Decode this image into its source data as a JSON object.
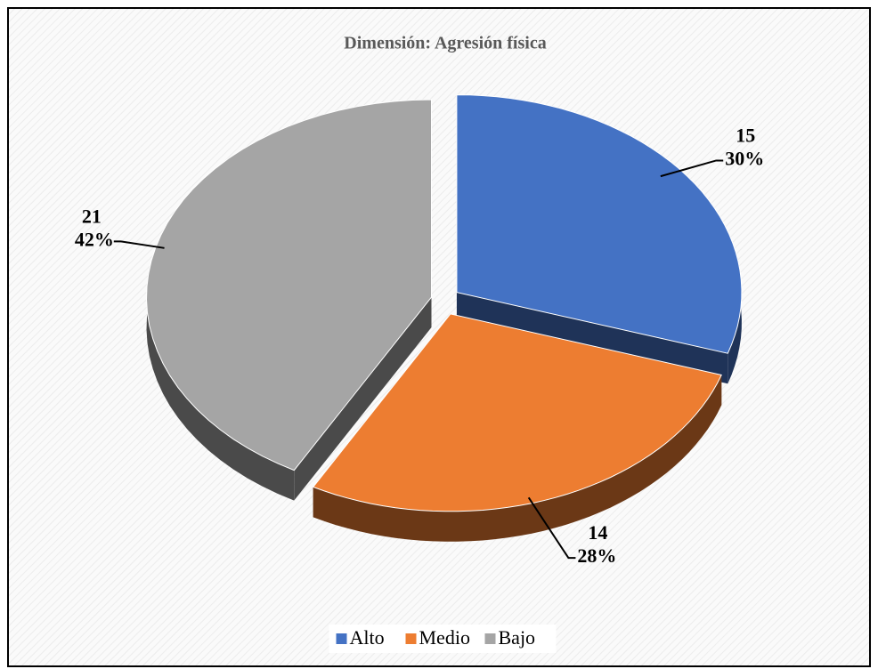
{
  "chart_data": {
    "type": "pie3d",
    "title": "Dimensión: Agresión física",
    "categories": [
      "Alto",
      "Medio",
      "Bajo"
    ],
    "values": [
      15,
      14,
      21
    ],
    "percentages": [
      30,
      28,
      42
    ],
    "value_labels": [
      "30%",
      "28%",
      "42%"
    ],
    "colors": [
      "#4472c4",
      "#ed7d31",
      "#a5a5a5"
    ],
    "legend": "bottom"
  }
}
